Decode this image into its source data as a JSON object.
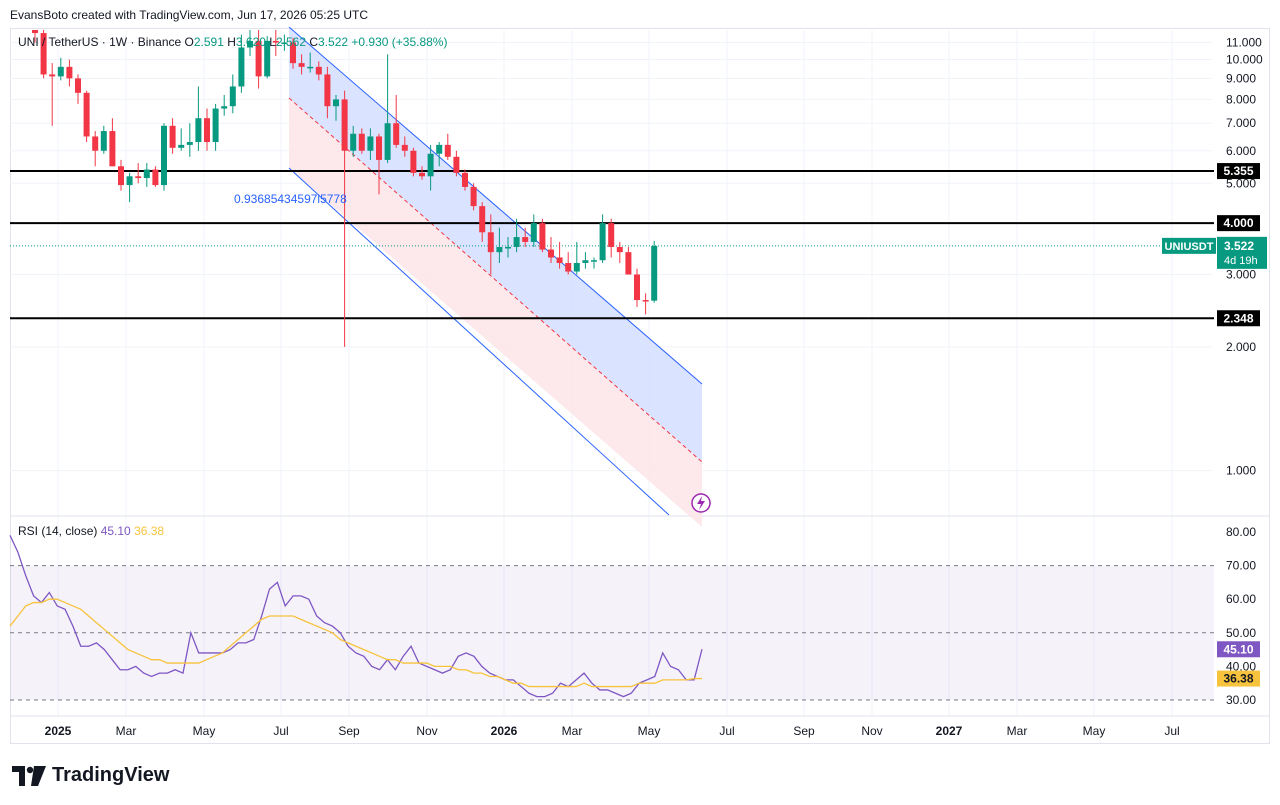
{
  "header": {
    "created_by": "EvansBoto created with TradingView.com, Jun 17, 2026 05:25 UTC"
  },
  "legend": {
    "symbol": "UNI / TetherUS · 1W · Binance",
    "o_label": "O",
    "o_value": "2.591",
    "h_label": "H",
    "h_value": "3.620",
    "l_label": "L",
    "l_value": "2.562",
    "c_label": "C",
    "c_value": "3.522",
    "change": "+0.930 (+35.88%)"
  },
  "annotation": {
    "channel_text": "0.93685434597l5778"
  },
  "rsi": {
    "label": "RSI (14, close)",
    "value": "45.10",
    "ma_value": "36.38"
  },
  "price_tags": {
    "level_1": "5.355",
    "level_2": "4.000",
    "level_3": "2.348",
    "symbol_tag": "UNIUSDT",
    "last_price": "3.522",
    "countdown": "4d 19h",
    "rsi_tag": "45.10",
    "rsi_ma_tag": "36.38"
  },
  "brand": {
    "name": "TradingView"
  },
  "colors": {
    "up": "#089981",
    "down": "#f23645",
    "channel_line": "#2962ff",
    "channel_upper_fill": "#d6e0ff",
    "channel_lower_fill": "#fde7e9",
    "rsi_line": "#7e57c2",
    "rsi_ma": "#f7c33c",
    "horizontal_level": "#000000"
  },
  "chart_data": {
    "type": "candlestick",
    "price_axis": {
      "scale": "log",
      "ticks": [
        "1.000",
        "2.000",
        "3.000",
        "5.000",
        "6.000",
        "7.000",
        "8.000",
        "9.000",
        "10.000",
        "11.000"
      ]
    },
    "time_axis": {
      "ticks": [
        "2025",
        "Mar",
        "May",
        "Jul",
        "Sep",
        "Nov",
        "2026",
        "Mar",
        "May",
        "Jul",
        "Sep",
        "Nov",
        "2027",
        "Mar",
        "May",
        "Jul"
      ]
    },
    "horizontal_levels": [
      5.355,
      4.0,
      2.348
    ],
    "last_price": 3.522,
    "candles": [
      {
        "o": 12.5,
        "h": 13.2,
        "l": 11.0,
        "c": 11.6
      },
      {
        "o": 11.6,
        "h": 12.5,
        "l": 9.0,
        "c": 9.2
      },
      {
        "o": 9.2,
        "h": 9.8,
        "l": 6.9,
        "c": 9.1
      },
      {
        "o": 9.1,
        "h": 10.1,
        "l": 8.9,
        "c": 9.6
      },
      {
        "o": 9.6,
        "h": 10.0,
        "l": 8.6,
        "c": 9.0
      },
      {
        "o": 9.0,
        "h": 9.2,
        "l": 7.8,
        "c": 8.3
      },
      {
        "o": 8.3,
        "h": 8.4,
        "l": 6.3,
        "c": 6.5
      },
      {
        "o": 6.5,
        "h": 6.7,
        "l": 5.5,
        "c": 6.0
      },
      {
        "o": 6.0,
        "h": 6.9,
        "l": 5.9,
        "c": 6.7
      },
      {
        "o": 6.7,
        "h": 7.2,
        "l": 5.5,
        "c": 5.5
      },
      {
        "o": 5.5,
        "h": 5.7,
        "l": 4.8,
        "c": 4.95
      },
      {
        "o": 4.95,
        "h": 5.3,
        "l": 4.5,
        "c": 5.2
      },
      {
        "o": 5.2,
        "h": 5.6,
        "l": 5.0,
        "c": 5.15
      },
      {
        "o": 5.15,
        "h": 5.6,
        "l": 4.9,
        "c": 5.4
      },
      {
        "o": 5.4,
        "h": 5.5,
        "l": 4.9,
        "c": 4.95
      },
      {
        "o": 4.95,
        "h": 7.0,
        "l": 4.8,
        "c": 6.9
      },
      {
        "o": 6.9,
        "h": 7.2,
        "l": 5.9,
        "c": 6.1
      },
      {
        "o": 6.1,
        "h": 6.8,
        "l": 6.0,
        "c": 6.2
      },
      {
        "o": 6.2,
        "h": 7.0,
        "l": 5.8,
        "c": 6.3
      },
      {
        "o": 6.3,
        "h": 8.6,
        "l": 6.0,
        "c": 7.2
      },
      {
        "o": 7.2,
        "h": 7.6,
        "l": 6.0,
        "c": 6.3
      },
      {
        "o": 6.3,
        "h": 7.8,
        "l": 6.0,
        "c": 7.6
      },
      {
        "o": 7.6,
        "h": 8.2,
        "l": 7.3,
        "c": 7.7
      },
      {
        "o": 7.7,
        "h": 9.2,
        "l": 7.4,
        "c": 8.6
      },
      {
        "o": 8.6,
        "h": 11.5,
        "l": 8.3,
        "c": 10.7
      },
      {
        "o": 10.7,
        "h": 12.0,
        "l": 10.2,
        "c": 11.1
      },
      {
        "o": 11.1,
        "h": 12.3,
        "l": 8.5,
        "c": 9.1
      },
      {
        "o": 9.1,
        "h": 11.4,
        "l": 9.0,
        "c": 11.1
      },
      {
        "o": 11.1,
        "h": 11.8,
        "l": 10.2,
        "c": 11.0
      },
      {
        "o": 11.0,
        "h": 11.5,
        "l": 10.5,
        "c": 11.0
      },
      {
        "o": 11.0,
        "h": 11.3,
        "l": 9.5,
        "c": 9.8
      },
      {
        "o": 9.8,
        "h": 10.3,
        "l": 9.2,
        "c": 9.6
      },
      {
        "o": 9.6,
        "h": 10.4,
        "l": 9.3,
        "c": 9.6
      },
      {
        "o": 9.6,
        "h": 9.9,
        "l": 8.9,
        "c": 9.2
      },
      {
        "o": 9.2,
        "h": 9.6,
        "l": 7.2,
        "c": 7.7
      },
      {
        "o": 7.7,
        "h": 8.2,
        "l": 7.1,
        "c": 8.0
      },
      {
        "o": 8.0,
        "h": 8.4,
        "l": 2.0,
        "c": 6.0
      },
      {
        "o": 6.0,
        "h": 6.9,
        "l": 5.8,
        "c": 6.6
      },
      {
        "o": 6.6,
        "h": 6.8,
        "l": 5.9,
        "c": 6.0
      },
      {
        "o": 6.0,
        "h": 6.8,
        "l": 5.7,
        "c": 6.5
      },
      {
        "o": 6.5,
        "h": 6.6,
        "l": 4.7,
        "c": 5.7
      },
      {
        "o": 5.7,
        "h": 10.3,
        "l": 5.6,
        "c": 7.0
      },
      {
        "o": 7.0,
        "h": 8.2,
        "l": 6.1,
        "c": 6.2
      },
      {
        "o": 6.2,
        "h": 6.5,
        "l": 5.8,
        "c": 6.0
      },
      {
        "o": 6.0,
        "h": 6.1,
        "l": 5.2,
        "c": 5.3
      },
      {
        "o": 5.3,
        "h": 5.5,
        "l": 5.1,
        "c": 5.2
      },
      {
        "o": 5.2,
        "h": 6.2,
        "l": 4.8,
        "c": 5.9
      },
      {
        "o": 5.9,
        "h": 6.3,
        "l": 5.5,
        "c": 6.2
      },
      {
        "o": 6.2,
        "h": 6.6,
        "l": 5.7,
        "c": 5.8
      },
      {
        "o": 5.8,
        "h": 6.0,
        "l": 5.2,
        "c": 5.3
      },
      {
        "o": 5.3,
        "h": 5.4,
        "l": 4.8,
        "c": 4.9
      },
      {
        "o": 4.9,
        "h": 5.0,
        "l": 4.3,
        "c": 4.4
      },
      {
        "o": 4.4,
        "h": 4.5,
        "l": 3.6,
        "c": 3.8
      },
      {
        "o": 3.8,
        "h": 4.2,
        "l": 3.0,
        "c": 3.4
      },
      {
        "o": 3.4,
        "h": 3.9,
        "l": 3.2,
        "c": 3.5
      },
      {
        "o": 3.5,
        "h": 3.7,
        "l": 3.3,
        "c": 3.5
      },
      {
        "o": 3.5,
        "h": 4.1,
        "l": 3.4,
        "c": 3.7
      },
      {
        "o": 3.7,
        "h": 3.9,
        "l": 3.5,
        "c": 3.6
      },
      {
        "o": 3.6,
        "h": 4.2,
        "l": 3.5,
        "c": 4.0
      },
      {
        "o": 4.0,
        "h": 4.1,
        "l": 3.4,
        "c": 3.45
      },
      {
        "o": 3.45,
        "h": 3.7,
        "l": 3.2,
        "c": 3.3
      },
      {
        "o": 3.3,
        "h": 3.6,
        "l": 3.1,
        "c": 3.2
      },
      {
        "o": 3.2,
        "h": 3.4,
        "l": 3.0,
        "c": 3.05
      },
      {
        "o": 3.05,
        "h": 3.6,
        "l": 3.0,
        "c": 3.2
      },
      {
        "o": 3.2,
        "h": 3.4,
        "l": 3.1,
        "c": 3.25
      },
      {
        "o": 3.25,
        "h": 3.3,
        "l": 3.1,
        "c": 3.25
      },
      {
        "o": 3.25,
        "h": 4.2,
        "l": 3.2,
        "c": 4.0
      },
      {
        "o": 4.0,
        "h": 4.1,
        "l": 3.3,
        "c": 3.5
      },
      {
        "o": 3.5,
        "h": 3.6,
        "l": 3.2,
        "c": 3.4
      },
      {
        "o": 3.4,
        "h": 3.5,
        "l": 3.0,
        "c": 3.0
      },
      {
        "o": 3.0,
        "h": 3.1,
        "l": 2.5,
        "c": 2.6
      },
      {
        "o": 2.6,
        "h": 2.7,
        "l": 2.4,
        "c": 2.591
      },
      {
        "o": 2.591,
        "h": 3.62,
        "l": 2.562,
        "c": 3.522
      }
    ],
    "rsi": {
      "name": "RSI (14, close)",
      "range": [
        30,
        80
      ],
      "ticks": [
        "80.00",
        "70.00",
        "60.00",
        "50.00",
        "40.00",
        "30.00"
      ],
      "band_upper": 70,
      "band_middle": 50,
      "band_lower": 30,
      "values": [
        79,
        74,
        67,
        61,
        59,
        62,
        58,
        57,
        52,
        46,
        46,
        47,
        45,
        42,
        39,
        39,
        40,
        38,
        37,
        38,
        38,
        39,
        38,
        50,
        44,
        44,
        44,
        44,
        45,
        47,
        47,
        48,
        55,
        63,
        65,
        58,
        61,
        61,
        60,
        55,
        53,
        52,
        50,
        46,
        44,
        43,
        40,
        39,
        42,
        39,
        43,
        46,
        41,
        40,
        39,
        38,
        39,
        43,
        44,
        43,
        40,
        38,
        37,
        36,
        36,
        34,
        32,
        31,
        31,
        32,
        35,
        34,
        36,
        38,
        35,
        33,
        33,
        32,
        31,
        32,
        35,
        36,
        37,
        44,
        40,
        39,
        36,
        36,
        45.1
      ],
      "ma_values": [
        52,
        55,
        58,
        59,
        59,
        60,
        60,
        59,
        58,
        57,
        55,
        53,
        51,
        49,
        47,
        45,
        44,
        43,
        42,
        42,
        41,
        41,
        41,
        41,
        41,
        42,
        43,
        44,
        46,
        48,
        50,
        52,
        54,
        55,
        55,
        55,
        55,
        54,
        53,
        52,
        51,
        50,
        48,
        47,
        46,
        45,
        44,
        43,
        42,
        42,
        41,
        41,
        41,
        41,
        40,
        40,
        40,
        39,
        39,
        38,
        38,
        37,
        37,
        36,
        35,
        35,
        34,
        34,
        34,
        34,
        34,
        34,
        34,
        35,
        34,
        34,
        34,
        34,
        34,
        34,
        35,
        35,
        35,
        36,
        36,
        36,
        36,
        36.38,
        36.38
      ],
      "latest": 45.1,
      "latest_ma": 36.38
    }
  }
}
